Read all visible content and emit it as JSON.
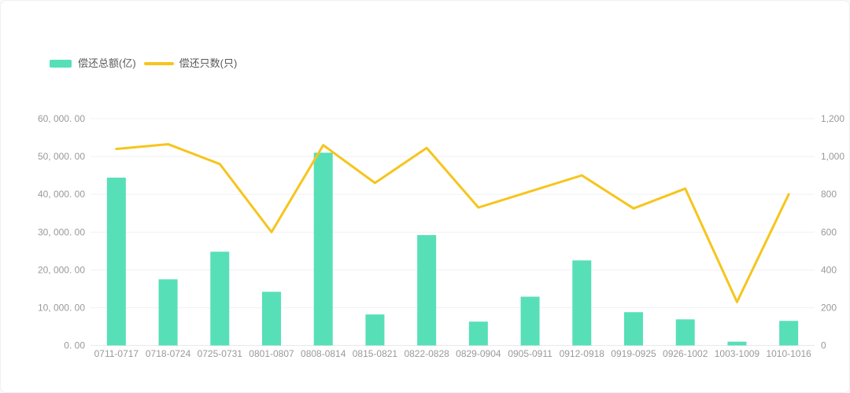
{
  "colors": {
    "background": "#ffffff",
    "card_border": "#eef0f3",
    "grid": "#f1f1f4",
    "axis_line": "#e8e9ec",
    "axis_text": "#999999",
    "legend_text": "#595959",
    "bar": "#57DFB8",
    "line": "#F6C51D"
  },
  "chart_data": {
    "type": "bar+line",
    "title": "",
    "legend_position": "top-left",
    "grid": true,
    "categories": [
      "0711-0717",
      "0718-0724",
      "0725-0731",
      "0801-0807",
      "0808-0814",
      "0815-0821",
      "0822-0828",
      "0829-0904",
      "0905-0911",
      "0912-0918",
      "0919-0925",
      "0926-1002",
      "1003-1009",
      "1010-1016"
    ],
    "series": [
      {
        "name": "偿还总额(亿)",
        "type": "bar",
        "y_axis": "left",
        "color": "#57DFB8",
        "values": [
          44400,
          17500,
          24800,
          14200,
          51000,
          8200,
          29200,
          6300,
          12900,
          22500,
          8800,
          6900,
          1000,
          6500
        ]
      },
      {
        "name": "偿还只数(只)",
        "type": "line",
        "y_axis": "right",
        "color": "#F6C51D",
        "values": [
          1040,
          1065,
          960,
          600,
          1060,
          860,
          1045,
          730,
          815,
          900,
          725,
          830,
          230,
          800
        ]
      }
    ],
    "left_axis": {
      "min": 0,
      "max": 60000,
      "tick_labels": [
        "0. 00",
        "10, 000. 00",
        "20, 000. 00",
        "30, 000. 00",
        "40, 000. 00",
        "50, 000. 00",
        "60, 000. 00"
      ]
    },
    "right_axis": {
      "min": 0,
      "max": 1200,
      "tick_labels": [
        "0",
        "200",
        "400",
        "600",
        "800",
        "1,000",
        "1,200"
      ]
    }
  }
}
